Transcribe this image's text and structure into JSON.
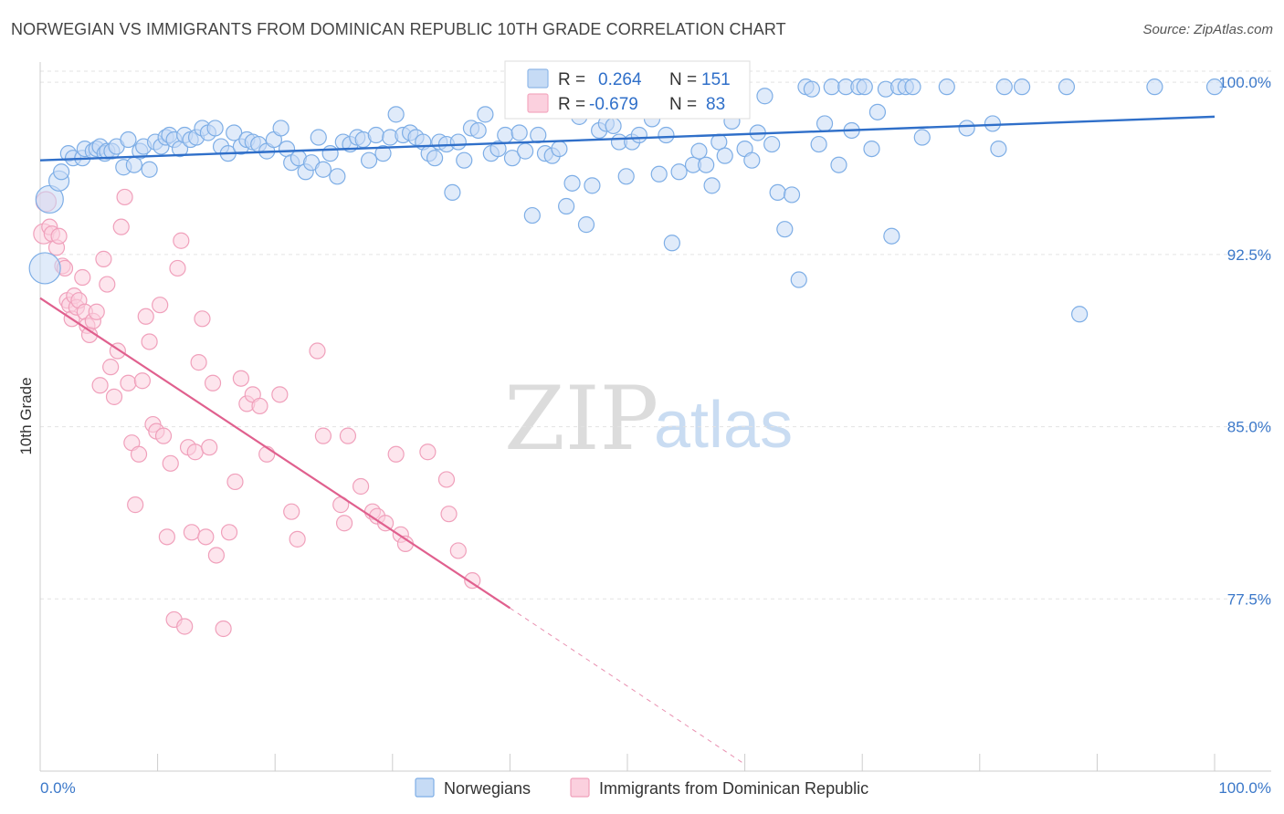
{
  "header": {
    "title": "NORWEGIAN VS IMMIGRANTS FROM DOMINICAN REPUBLIC 10TH GRADE CORRELATION CHART",
    "source": "Source: ZipAtlas.com"
  },
  "watermark": {
    "zip": "ZIP",
    "atlas": "atlas"
  },
  "stats": {
    "r_label": "R =",
    "n_label": "N =",
    "rows": [
      {
        "r": "0.264",
        "n": "151",
        "color": "#8fb8e8"
      },
      {
        "r": "-0.679",
        "n": "83",
        "color": "#f4a9c0"
      }
    ]
  },
  "colors": {
    "blue_fill": "#c6dbf5",
    "blue_stroke": "#7eaee6",
    "blue_line": "#2f6fc9",
    "pink_fill": "#fbd0de",
    "pink_stroke": "#f0a0bb",
    "pink_line": "#e0608e",
    "grid": "#e3e3e3",
    "tick_text": "#3b78c9"
  },
  "chart_data": {
    "type": "scatter",
    "title": "NORWEGIAN VS IMMIGRANTS FROM DOMINICAN REPUBLIC 10TH GRADE CORRELATION CHART",
    "xlabel": "",
    "ylabel": "10th Grade",
    "xlim": [
      0,
      100
    ],
    "ylim": [
      70.0,
      100.8
    ],
    "x_tick_labels": [
      "0.0%",
      "100.0%"
    ],
    "y_ticks": [
      100.0,
      92.5,
      85.0,
      77.5
    ],
    "y_tick_labels": [
      "100.0%",
      "92.5%",
      "85.0%",
      "77.5%"
    ],
    "grid": true,
    "legend_position": "bottom-center",
    "series": [
      {
        "name": "Norwegians",
        "trend": {
          "x": [
            0,
            100
          ],
          "y": [
            96.6,
            98.5
          ]
        },
        "points": [
          [
            0.4,
            91.9
          ],
          [
            0.8,
            94.9
          ],
          [
            1.6,
            95.7
          ],
          [
            1.8,
            96.1
          ],
          [
            2.4,
            96.9
          ],
          [
            2.8,
            96.7
          ],
          [
            3.6,
            96.7
          ],
          [
            3.8,
            97.1
          ],
          [
            4.5,
            97.0
          ],
          [
            4.8,
            97.1
          ],
          [
            5.1,
            97.2
          ],
          [
            5.5,
            96.9
          ],
          [
            5.7,
            97.0
          ],
          [
            6.1,
            97.0
          ],
          [
            6.5,
            97.2
          ],
          [
            7.1,
            96.3
          ],
          [
            7.5,
            97.5
          ],
          [
            8.0,
            96.4
          ],
          [
            8.5,
            97.0
          ],
          [
            8.8,
            97.2
          ],
          [
            9.3,
            96.2
          ],
          [
            9.8,
            97.4
          ],
          [
            10.3,
            97.2
          ],
          [
            10.7,
            97.6
          ],
          [
            11.0,
            97.7
          ],
          [
            11.4,
            97.5
          ],
          [
            11.9,
            97.1
          ],
          [
            12.3,
            97.7
          ],
          [
            12.8,
            97.5
          ],
          [
            13.3,
            97.6
          ],
          [
            13.8,
            98.0
          ],
          [
            14.3,
            97.8
          ],
          [
            14.9,
            98.0
          ],
          [
            15.4,
            97.2
          ],
          [
            16.0,
            96.9
          ],
          [
            16.5,
            97.8
          ],
          [
            17.1,
            97.2
          ],
          [
            17.6,
            97.5
          ],
          [
            18.1,
            97.4
          ],
          [
            18.6,
            97.3
          ],
          [
            19.3,
            97.0
          ],
          [
            19.9,
            97.5
          ],
          [
            20.5,
            98.0
          ],
          [
            21.0,
            97.1
          ],
          [
            21.4,
            96.5
          ],
          [
            22.0,
            96.7
          ],
          [
            22.6,
            96.1
          ],
          [
            23.1,
            96.5
          ],
          [
            23.7,
            97.6
          ],
          [
            24.1,
            96.2
          ],
          [
            24.7,
            96.9
          ],
          [
            25.3,
            95.9
          ],
          [
            25.8,
            97.4
          ],
          [
            26.4,
            97.3
          ],
          [
            27.0,
            97.6
          ],
          [
            27.5,
            97.5
          ],
          [
            28.0,
            96.6
          ],
          [
            28.6,
            97.7
          ],
          [
            29.2,
            96.9
          ],
          [
            29.8,
            97.6
          ],
          [
            30.3,
            98.6
          ],
          [
            30.9,
            97.7
          ],
          [
            31.5,
            97.8
          ],
          [
            32.0,
            97.6
          ],
          [
            32.6,
            97.4
          ],
          [
            33.1,
            96.9
          ],
          [
            33.6,
            96.7
          ],
          [
            34.0,
            97.4
          ],
          [
            34.6,
            97.3
          ],
          [
            35.1,
            95.2
          ],
          [
            35.6,
            97.4
          ],
          [
            36.1,
            96.6
          ],
          [
            36.7,
            98.0
          ],
          [
            37.3,
            97.9
          ],
          [
            37.9,
            98.6
          ],
          [
            38.4,
            96.9
          ],
          [
            39.0,
            97.1
          ],
          [
            39.6,
            97.7
          ],
          [
            40.2,
            96.7
          ],
          [
            40.8,
            97.8
          ],
          [
            41.3,
            97.0
          ],
          [
            41.9,
            94.2
          ],
          [
            42.4,
            97.7
          ],
          [
            43.0,
            96.9
          ],
          [
            43.6,
            96.8
          ],
          [
            44.2,
            97.1
          ],
          [
            44.8,
            94.6
          ],
          [
            45.3,
            95.6
          ],
          [
            45.9,
            98.5
          ],
          [
            46.5,
            93.8
          ],
          [
            47.0,
            95.5
          ],
          [
            47.6,
            97.9
          ],
          [
            48.2,
            98.2
          ],
          [
            48.8,
            98.1
          ],
          [
            49.3,
            97.4
          ],
          [
            49.9,
            95.9
          ],
          [
            50.4,
            97.4
          ],
          [
            51.0,
            97.7
          ],
          [
            51.6,
            99.6
          ],
          [
            52.1,
            98.4
          ],
          [
            52.7,
            96.0
          ],
          [
            53.3,
            97.7
          ],
          [
            53.8,
            93.0
          ],
          [
            54.4,
            96.1
          ],
          [
            55.0,
            98.9
          ],
          [
            55.6,
            96.4
          ],
          [
            56.1,
            97.0
          ],
          [
            56.7,
            96.4
          ],
          [
            57.2,
            95.5
          ],
          [
            57.8,
            97.4
          ],
          [
            58.3,
            96.8
          ],
          [
            58.9,
            98.3
          ],
          [
            59.5,
            99.1
          ],
          [
            60.0,
            97.1
          ],
          [
            60.6,
            96.6
          ],
          [
            61.1,
            97.8
          ],
          [
            61.7,
            99.4
          ],
          [
            62.3,
            97.3
          ],
          [
            62.8,
            95.2
          ],
          [
            63.4,
            93.6
          ],
          [
            64.0,
            95.1
          ],
          [
            64.6,
            91.4
          ],
          [
            65.2,
            99.8
          ],
          [
            65.7,
            99.7
          ],
          [
            66.3,
            97.3
          ],
          [
            66.8,
            98.2
          ],
          [
            67.4,
            99.8
          ],
          [
            68.0,
            96.4
          ],
          [
            68.6,
            99.8
          ],
          [
            69.1,
            97.9
          ],
          [
            69.7,
            99.8
          ],
          [
            70.2,
            99.8
          ],
          [
            70.8,
            97.1
          ],
          [
            71.3,
            98.7
          ],
          [
            72.0,
            99.7
          ],
          [
            72.5,
            93.3
          ],
          [
            73.1,
            99.8
          ],
          [
            73.7,
            99.8
          ],
          [
            74.3,
            99.8
          ],
          [
            75.1,
            97.6
          ],
          [
            77.2,
            99.8
          ],
          [
            78.9,
            98.0
          ],
          [
            81.1,
            98.2
          ],
          [
            81.6,
            97.1
          ],
          [
            82.1,
            99.8
          ],
          [
            83.6,
            99.8
          ],
          [
            87.4,
            99.8
          ],
          [
            88.5,
            89.9
          ],
          [
            94.9,
            99.8
          ],
          [
            100.0,
            99.8
          ]
        ]
      },
      {
        "name": "Immigrants from Dominican Republic",
        "trend": {
          "x": [
            0,
            40
          ],
          "y": [
            90.6,
            77.1
          ],
          "dash_to": {
            "x": 60,
            "y": 70.3
          }
        },
        "points": [
          [
            0.3,
            93.4
          ],
          [
            0.5,
            94.8
          ],
          [
            0.8,
            93.7
          ],
          [
            1.0,
            93.4
          ],
          [
            1.4,
            92.8
          ],
          [
            1.6,
            93.3
          ],
          [
            1.9,
            92.0
          ],
          [
            2.1,
            91.9
          ],
          [
            2.3,
            90.5
          ],
          [
            2.5,
            90.3
          ],
          [
            2.7,
            89.7
          ],
          [
            2.9,
            90.7
          ],
          [
            3.1,
            90.2
          ],
          [
            3.3,
            90.5
          ],
          [
            3.6,
            91.5
          ],
          [
            3.8,
            90.0
          ],
          [
            4.0,
            89.4
          ],
          [
            4.2,
            89.0
          ],
          [
            4.5,
            89.6
          ],
          [
            4.8,
            90.0
          ],
          [
            5.1,
            86.8
          ],
          [
            5.4,
            92.3
          ],
          [
            5.7,
            91.2
          ],
          [
            6.0,
            87.6
          ],
          [
            6.3,
            86.3
          ],
          [
            6.6,
            88.3
          ],
          [
            6.9,
            93.7
          ],
          [
            7.2,
            95.0
          ],
          [
            7.5,
            86.9
          ],
          [
            7.8,
            84.3
          ],
          [
            8.1,
            81.6
          ],
          [
            8.4,
            83.8
          ],
          [
            8.7,
            87.0
          ],
          [
            9.0,
            89.8
          ],
          [
            9.3,
            88.7
          ],
          [
            9.6,
            85.1
          ],
          [
            9.9,
            84.8
          ],
          [
            10.2,
            90.3
          ],
          [
            10.5,
            84.6
          ],
          [
            10.8,
            80.2
          ],
          [
            11.1,
            83.4
          ],
          [
            11.4,
            76.6
          ],
          [
            11.7,
            91.9
          ],
          [
            12.0,
            93.1
          ],
          [
            12.3,
            76.3
          ],
          [
            12.6,
            84.1
          ],
          [
            12.9,
            80.4
          ],
          [
            13.2,
            83.9
          ],
          [
            13.5,
            87.8
          ],
          [
            13.8,
            89.7
          ],
          [
            14.1,
            80.2
          ],
          [
            14.4,
            84.1
          ],
          [
            14.7,
            86.9
          ],
          [
            15.0,
            79.4
          ],
          [
            15.6,
            76.2
          ],
          [
            16.1,
            80.4
          ],
          [
            16.6,
            82.6
          ],
          [
            17.1,
            87.1
          ],
          [
            17.6,
            86.0
          ],
          [
            18.1,
            86.4
          ],
          [
            18.7,
            85.9
          ],
          [
            19.3,
            83.8
          ],
          [
            20.4,
            86.4
          ],
          [
            21.4,
            81.3
          ],
          [
            21.9,
            80.1
          ],
          [
            23.6,
            88.3
          ],
          [
            24.1,
            84.6
          ],
          [
            25.6,
            81.6
          ],
          [
            25.9,
            80.8
          ],
          [
            26.2,
            84.6
          ],
          [
            27.3,
            82.4
          ],
          [
            28.3,
            81.3
          ],
          [
            28.7,
            81.1
          ],
          [
            29.4,
            80.8
          ],
          [
            30.3,
            83.8
          ],
          [
            30.7,
            80.3
          ],
          [
            31.1,
            79.9
          ],
          [
            33.0,
            83.9
          ],
          [
            34.6,
            82.7
          ],
          [
            34.8,
            81.2
          ],
          [
            35.6,
            79.6
          ],
          [
            36.8,
            78.3
          ]
        ]
      }
    ]
  },
  "legend": {
    "items": [
      {
        "label": "Norwegians",
        "color": "#c6dbf5"
      },
      {
        "label": "Immigrants from Dominican Republic",
        "color": "#fbd0de"
      }
    ]
  }
}
